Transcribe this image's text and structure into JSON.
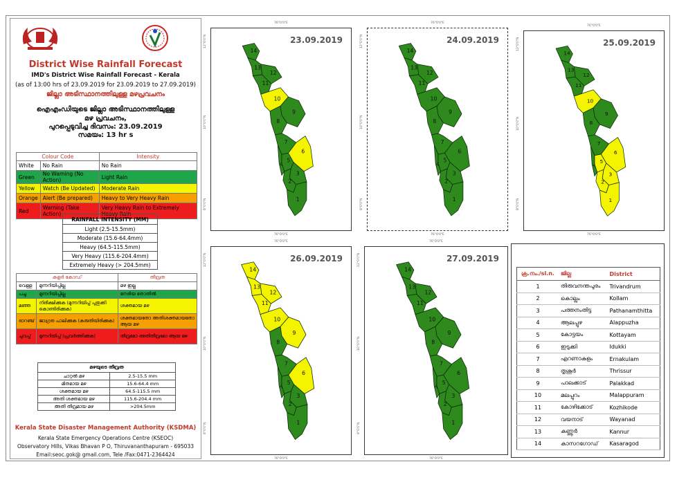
{
  "header": {
    "title": "District Wise Rainfall Forecast",
    "subtitle": "IMD's District Wise Rainfall Forecast - Kerala",
    "as_of": "(as of 13:00 hrs of 23.09.2019  for 23.09.2019  to 27.09.2019)",
    "ml_title": "ജില്ലാ അടിസ്ഥാനത്തിലുള്ള  മഴപ്രവചനം",
    "ml_line1": "ഐഎംഡിയുടെ ജില്ലാ  അടിസ്ഥാനത്തിലുള്ള",
    "ml_line2": "മഴ പ്രവചനം,",
    "ml_line3": "പുറപ്പെടുവിച്ച  ദിവസം: 23.09.2019",
    "ml_line4": "സമയം: 13 hr s"
  },
  "colour_code": {
    "col1": "Colour Code",
    "col2": "Intensity",
    "rows": [
      {
        "name": "White",
        "meaning": "No Rain",
        "intensity": "No Rain",
        "color": "#ffffff"
      },
      {
        "name": "Green",
        "meaning": "No Warning (No Action)",
        "intensity": "Light Rain",
        "color": "#1fa64a"
      },
      {
        "name": "Yellow",
        "meaning": "Watch (Be Updated)",
        "intensity": "Moderate Rain",
        "color": "#f4f400"
      },
      {
        "name": "Orange",
        "meaning": "Alert (Be prepared)",
        "intensity": "Heavy to Very Heavy Rain",
        "color": "#f5a000"
      },
      {
        "name": "Red",
        "meaning": "Warning (Take Action)",
        "intensity": "Very Heavy Rain to Extremely Heavy Rain",
        "color": "#ee1c1c"
      }
    ]
  },
  "rainfall_intensity": {
    "title": "RAINFALL INTENSITY (MM)",
    "rows": [
      "Light (2.5-15.5mm)",
      "Moderate (15.6-64.4mm)",
      "Heavy (64.5-115.5mm)",
      "Very Heavy (115.6-204.4mm)",
      "Extremely Heavy (> 204.5mm)"
    ]
  },
  "ml_colour_code": {
    "col1": "കളർ കോഡ്",
    "col2": "തീവ്രത",
    "rows": [
      {
        "name": "വെള്ള",
        "meaning": "മുന്നറിയിപ്പില്ല",
        "intensity": "മഴ ഇല്ല"
      },
      {
        "name": "പച്ച",
        "meaning": "മുന്നറിയിപ്പില്ല",
        "intensity": "നേരിയ തോതിൽ"
      },
      {
        "name": "മഞ്ഞ",
        "meaning": "നിരീക്ഷിക്കുക (മുന്നറിയിപ്പ് പുതുക്കി കൊണ്ടിരിക്കുക)",
        "intensity": "ശക്തമായ മഴ"
      },
      {
        "name": "ഓറഞ്ച്",
        "meaning": "ജാഗ്രത പാലിക്കുക (കരുതിയിരിക്കുക)",
        "intensity": "ശക്തമായതോ അതിശക്തമായതോ ആയ മഴ"
      },
      {
        "name": "ചുവപ്പ്",
        "meaning": "മുന്നറിയിപ്പ് (പ്രവർത്തിക്കുക)",
        "intensity": "തീവ്രമോ അതിതീവ്രമോ ആയ മഴ"
      }
    ]
  },
  "ml_intensity": {
    "title": "മഴയുടെ തീവ്രത",
    "rows": [
      {
        "label": "ചാറ്റൽ മഴ",
        "value": "2.5-15.5 mm"
      },
      {
        "label": "മിതമായ മഴ",
        "value": "15.6-64.4 mm"
      },
      {
        "label": "ശക്തമായ മഴ",
        "value": "64.5-115.5 mm"
      },
      {
        "label": "അതി ശക്തമായ മഴ",
        "value": "115.6-204.4 mm"
      },
      {
        "label": "അതി തീവ്രമായ മഴ",
        "value": ">204.5mm"
      }
    ]
  },
  "maps": [
    {
      "date": "23.09.2019",
      "yellow": [
        10,
        6
      ]
    },
    {
      "date": "24.09.2019",
      "yellow": []
    },
    {
      "date": "25.09.2019",
      "yellow": [
        10,
        6,
        5,
        3,
        2,
        1
      ]
    },
    {
      "date": "26.09.2019",
      "yellow": [
        14,
        13,
        12,
        11,
        10,
        9,
        6
      ]
    },
    {
      "date": "27.09.2019",
      "yellow": []
    }
  ],
  "map_ticks": {
    "lon": "76°0'0\"E",
    "lat_n": "12°0'0\"N",
    "lat_m": "10°0'0\"N",
    "lat_s": "8°0'0\"N"
  },
  "district_table": {
    "col_no": "ക്ര.നം./sl.n.",
    "col_ml": "ജില്ല",
    "col_en": "District",
    "rows": [
      {
        "no": "1",
        "ml": "തിരുവനന്തപുരം",
        "en": "Trivandrum"
      },
      {
        "no": "2",
        "ml": "കൊല്ലം",
        "en": "Kollam"
      },
      {
        "no": "3",
        "ml": "പത്തനംതിട്ട",
        "en": "Pathanamthitta"
      },
      {
        "no": "4",
        "ml": "ആലപ്പുഴ",
        "en": "Alappuzha"
      },
      {
        "no": "5",
        "ml": "കോട്ടയം",
        "en": "Kottayam"
      },
      {
        "no": "6",
        "ml": "ഇടുക്കി",
        "en": "Idukki"
      },
      {
        "no": "7",
        "ml": "എറണാകുളം",
        "en": "Ernakulam"
      },
      {
        "no": "8",
        "ml": "തൃശൂർ",
        "en": "Thrissur"
      },
      {
        "no": "9",
        "ml": "പാലക്കാട്",
        "en": "Palakkad"
      },
      {
        "no": "10",
        "ml": "മലപ്പുറം",
        "en": "Malappuram"
      },
      {
        "no": "11",
        "ml": "കോഴിക്കോട്",
        "en": "Kozhikode"
      },
      {
        "no": "12",
        "ml": "വയനാട്",
        "en": "Wayanad"
      },
      {
        "no": "13",
        "ml": "കണ്ണൂർ",
        "en": "Kannur"
      },
      {
        "no": "14",
        "ml": "കാസറഗോഡ്",
        "en": "Kasaragod"
      }
    ]
  },
  "footer": {
    "org": "Kerala State Disaster Management Authority (KSDMA)",
    "line1": "Kerala State Emergency Operations Centre (KSEOC)",
    "line2": "Observatory Hills, Vikas Bhavan P O, Thiruvananthapuram - 695033",
    "line3": "Email:seoc.gok@ gmail.com, Tele /Fax:0471-2364424"
  },
  "colors": {
    "green": "#2f8a1e",
    "yellow": "#f4f400",
    "title_red": "#c0392b"
  }
}
